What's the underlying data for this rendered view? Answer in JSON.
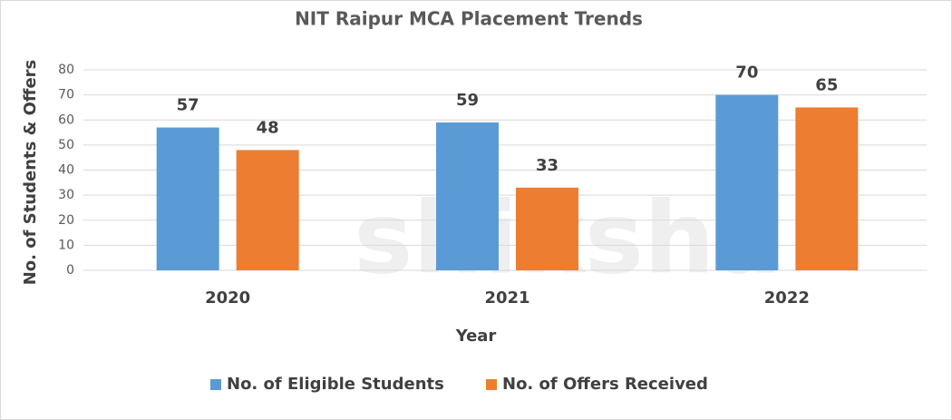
{
  "chart_data": {
    "type": "bar",
    "title": "NIT Raipur MCA Placement Trends",
    "watermark": "shiksha",
    "x_label": "Year",
    "y_label": "No. of Students & Offers",
    "categories": [
      "2020",
      "2021",
      "2022"
    ],
    "series": [
      {
        "name": "No. of Eligible Students",
        "color": "#5b9bd5",
        "values": [
          57,
          59,
          70
        ]
      },
      {
        "name": "No. of Offers Received",
        "color": "#ed7d31",
        "values": [
          48,
          33,
          65
        ]
      }
    ],
    "ylim": [
      0,
      80
    ],
    "yticks": [
      0,
      10,
      20,
      30,
      40,
      50,
      60,
      70,
      80
    ],
    "grid": true,
    "legend": "bottom"
  }
}
